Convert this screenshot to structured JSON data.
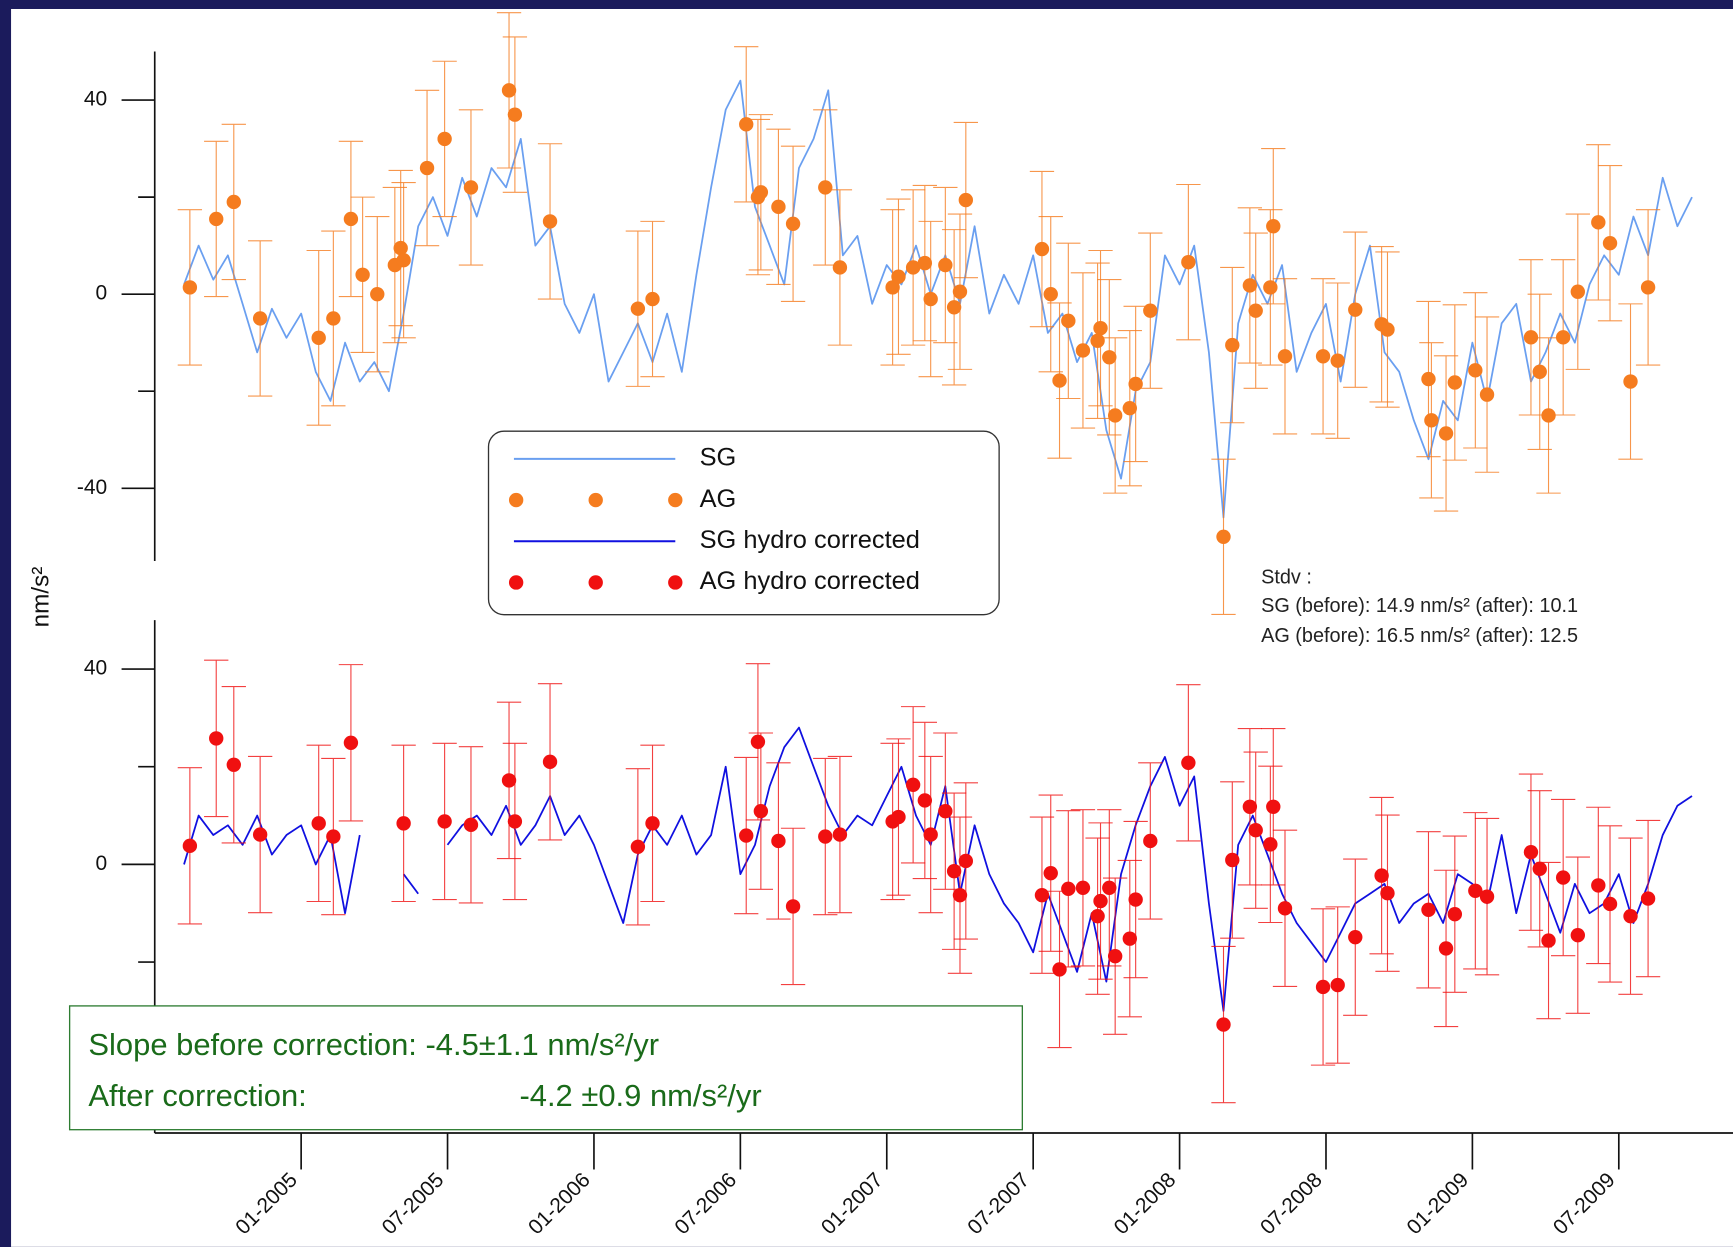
{
  "chart_data": [
    {
      "type": "line",
      "xlim": [
        2004.5,
        2009.89
      ],
      "ylim": [
        -55,
        50
      ],
      "yticks": [
        40,
        0,
        -40
      ],
      "yminor": [
        20,
        -20
      ],
      "series": [
        {
          "name": "SG",
          "color": "#6a9ff0",
          "mode": "line",
          "x": [
            2004.6,
            2004.65,
            2004.7,
            2004.75,
            2004.8,
            2004.85,
            2004.9,
            2004.95,
            2005,
            2005.05,
            2005.1,
            2005.15,
            2005.2,
            2005.25,
            2005.3,
            2005.35,
            2005.4,
            2005.45,
            2005.5,
            2005.55,
            2005.6,
            2005.65,
            2005.7,
            2005.75,
            2005.8,
            2005.85,
            2005.9,
            2005.95,
            2006,
            2006.05,
            2006.1,
            2006.15,
            2006.2,
            2006.25,
            2006.3,
            2006.35,
            2006.4,
            2006.45,
            2006.5,
            2006.55,
            2006.6,
            2006.65,
            2006.7,
            2006.75,
            2006.8,
            2006.85,
            2006.9,
            2006.95,
            2007,
            2007.05,
            2007.1,
            2007.15,
            2007.2,
            2007.25,
            2007.3,
            2007.35,
            2007.4,
            2007.45,
            2007.5,
            2007.55,
            2007.6,
            2007.65,
            2007.7,
            2007.75,
            2007.8,
            2007.85,
            2007.9,
            2007.95,
            2008,
            2008.05,
            2008.1,
            2008.15,
            2008.2,
            2008.25,
            2008.3,
            2008.35,
            2008.4,
            2008.45,
            2008.5,
            2008.55,
            2008.6,
            2008.65,
            2008.7,
            2008.75,
            2008.8,
            2008.85,
            2008.9,
            2008.95,
            2009,
            2009.05,
            2009.1,
            2009.15,
            2009.2,
            2009.25,
            2009.3,
            2009.35,
            2009.4,
            2009.45,
            2009.5,
            2009.55,
            2009.6,
            2009.65,
            2009.7,
            2009.75
          ],
          "values": [
            2,
            10,
            3,
            8,
            -2,
            -12,
            -3,
            -9,
            -4,
            -16,
            -22,
            -10,
            -18,
            -14,
            -20,
            -4,
            14,
            20,
            12,
            24,
            16,
            26,
            22,
            32,
            10,
            14,
            -2,
            -8,
            0,
            -18,
            -12,
            -6,
            -14,
            -4,
            -16,
            4,
            22,
            38,
            44,
            18,
            10,
            2,
            26,
            32,
            42,
            8,
            12,
            -2,
            6,
            2,
            10,
            0,
            8,
            -2,
            14,
            -4,
            4,
            -2,
            8,
            -8,
            -4,
            -14,
            -8,
            -28,
            -38,
            -20,
            -14,
            8,
            2,
            10,
            -12,
            -46,
            -6,
            4,
            -2,
            6,
            -16,
            -8,
            -2,
            -18,
            0,
            10,
            -12,
            -16,
            -26,
            -34,
            -22,
            -26,
            -10,
            -22,
            -6,
            -2,
            -18,
            -12,
            -4,
            -10,
            2,
            8,
            4,
            16,
            8,
            24,
            14,
            20
          ]
        },
        {
          "name": "AG",
          "color": "#f57c1f",
          "mode": "points",
          "x": [
            2004.62,
            2004.71,
            2004.77,
            2004.86,
            2005.06,
            2005.11,
            2005.17,
            2005.21,
            2005.26,
            2005.32,
            2005.34,
            2005.35,
            2005.43,
            2005.49,
            2005.58,
            2005.71,
            2005.73,
            2005.85,
            2006.15,
            2006.2,
            2006.52,
            2006.56,
            2006.57,
            2006.63,
            2006.68,
            2006.79,
            2006.84,
            2007.02,
            2007.04,
            2007.09,
            2007.13,
            2007.15,
            2007.2,
            2007.23,
            2007.25,
            2007.27,
            2007.53,
            2007.56,
            2007.59,
            2007.62,
            2007.67,
            2007.72,
            2007.73,
            2007.76,
            2007.78,
            2007.83,
            2007.85,
            2007.9,
            2008.03,
            2008.15,
            2008.18,
            2008.24,
            2008.26,
            2008.31,
            2008.32,
            2008.36,
            2008.49,
            2008.54,
            2008.6,
            2008.69,
            2008.71,
            2008.85,
            2008.86,
            2008.91,
            2008.94,
            2009.01,
            2009.05,
            2009.2,
            2009.23,
            2009.26,
            2009.31,
            2009.36,
            2009.43,
            2009.47,
            2009.54,
            2009.6
          ],
          "values": [
            1.4,
            15.5,
            19,
            -5,
            -9,
            -5,
            15.5,
            4,
            0,
            6,
            9.5,
            7,
            26,
            32,
            22,
            42,
            37,
            15,
            -3,
            -1,
            35,
            20,
            21,
            18,
            14.5,
            22,
            5.5,
            1.4,
            3.6,
            5.5,
            6.4,
            -1,
            6,
            -2.7,
            0.5,
            19.4,
            9.3,
            0,
            -17.8,
            -5.5,
            -11.6,
            -9.6,
            -7,
            -13,
            -25,
            -23.5,
            -18.5,
            -3.4,
            6.6,
            -50,
            -10.5,
            1.8,
            -3.4,
            1.4,
            14,
            -12.8,
            -12.8,
            -13.7,
            -3.2,
            -6.2,
            -7.3,
            -17.5,
            -26,
            -28.7,
            -18.2,
            -15.7,
            -20.7,
            -8.9,
            -16,
            -25,
            -8.9,
            0.5,
            14.8,
            10.5,
            -18,
            1.4
          ],
          "errors": [
            16,
            16,
            16,
            16,
            18,
            18,
            16,
            16,
            16,
            16,
            16,
            16,
            16,
            16,
            16,
            16,
            16,
            16,
            16,
            16,
            16,
            16,
            16,
            16,
            16,
            16,
            16,
            16,
            16,
            16,
            16,
            16,
            16,
            16,
            16,
            16,
            16,
            16,
            16,
            16,
            16,
            16,
            16,
            16,
            16,
            16,
            16,
            16,
            16,
            16,
            16,
            16,
            16,
            16,
            16,
            16,
            16,
            16,
            16,
            16,
            16,
            16,
            16,
            16,
            16,
            16,
            16,
            16,
            16,
            16,
            16,
            16,
            16,
            16,
            16,
            16
          ]
        }
      ]
    },
    {
      "type": "line",
      "xlim": [
        2004.5,
        2009.89
      ],
      "ylim": [
        -55,
        50
      ],
      "yticks": [
        40,
        0,
        -40
      ],
      "yminor": [
        20,
        -20
      ],
      "xticks": [
        {
          "value": 2005,
          "label": "01-2005"
        },
        {
          "value": 2005.5,
          "label": "07-2005"
        },
        {
          "value": 2006,
          "label": "01-2006"
        },
        {
          "value": 2006.5,
          "label": "07-2006"
        },
        {
          "value": 2007,
          "label": "01-2007"
        },
        {
          "value": 2007.5,
          "label": "07-2007"
        },
        {
          "value": 2008,
          "label": "01-2008"
        },
        {
          "value": 2008.5,
          "label": "07-2008"
        },
        {
          "value": 2009,
          "label": "01-2009"
        },
        {
          "value": 2009.5,
          "label": "07-2009"
        }
      ],
      "series": [
        {
          "name": "SG hydro corrected",
          "color": "#1010e0",
          "mode": "line",
          "x": [
            2004.6,
            2004.65,
            2004.7,
            2004.75,
            2004.8,
            2004.85,
            2004.9,
            2004.95,
            2005,
            2005.05,
            2005.1,
            2005.15,
            2005.2,
            2005.25,
            2005.3,
            2005.35,
            2005.4,
            2005.45,
            2005.5,
            2005.55,
            2005.6,
            2005.65,
            2005.7,
            2005.75,
            2005.8,
            2005.85,
            2005.9,
            2005.95,
            2006,
            2006.05,
            2006.1,
            2006.15,
            2006.2,
            2006.25,
            2006.3,
            2006.35,
            2006.4,
            2006.45,
            2006.5,
            2006.55,
            2006.6,
            2006.65,
            2006.7,
            2006.75,
            2006.8,
            2006.85,
            2006.9,
            2006.95,
            2007,
            2007.05,
            2007.1,
            2007.15,
            2007.2,
            2007.25,
            2007.3,
            2007.35,
            2007.4,
            2007.45,
            2007.5,
            2007.55,
            2007.6,
            2007.65,
            2007.7,
            2007.75,
            2007.8,
            2007.85,
            2007.9,
            2007.95,
            2008,
            2008.05,
            2008.1,
            2008.15,
            2008.2,
            2008.25,
            2008.3,
            2008.35,
            2008.4,
            2008.45,
            2008.5,
            2008.55,
            2008.6,
            2008.65,
            2008.7,
            2008.75,
            2008.8,
            2008.85,
            2008.9,
            2008.95,
            2009,
            2009.05,
            2009.1,
            2009.15,
            2009.2,
            2009.25,
            2009.3,
            2009.35,
            2009.4,
            2009.45,
            2009.5,
            2009.55,
            2009.6,
            2009.65,
            2009.7,
            2009.75
          ],
          "values": [
            0,
            10,
            6,
            8,
            4,
            10,
            2,
            6,
            8,
            0,
            6,
            -10,
            6,
            null,
            null,
            -2,
            -6,
            null,
            4,
            8,
            10,
            6,
            12,
            4,
            8,
            14,
            6,
            10,
            4,
            -4,
            -12,
            2,
            8,
            4,
            10,
            2,
            6,
            20,
            -2,
            4,
            16,
            24,
            28,
            20,
            12,
            6,
            10,
            8,
            14,
            20,
            10,
            4,
            16,
            -6,
            8,
            -2,
            -8,
            -12,
            -18,
            -6,
            -14,
            -22,
            -10,
            -24,
            -2,
            8,
            16,
            22,
            12,
            18,
            -8,
            -30,
            4,
            10,
            2,
            -6,
            -12,
            -16,
            -20,
            -14,
            -8,
            -6,
            -4,
            -12,
            -8,
            -6,
            -12,
            -2,
            -4,
            -8,
            6,
            -10,
            2,
            -6,
            -14,
            -4,
            -10,
            -8,
            -2,
            -12,
            -4,
            6,
            12,
            14
          ]
        },
        {
          "name": "AG hydro corrected",
          "color": "#f01010",
          "mode": "points",
          "x": [
            2004.62,
            2004.71,
            2004.77,
            2004.86,
            2005.06,
            2005.11,
            2005.17,
            2005.35,
            2005.49,
            2005.58,
            2005.71,
            2005.73,
            2005.85,
            2006.15,
            2006.2,
            2006.52,
            2006.56,
            2006.57,
            2006.63,
            2006.68,
            2006.79,
            2006.84,
            2007.02,
            2007.04,
            2007.09,
            2007.13,
            2007.15,
            2007.2,
            2007.23,
            2007.25,
            2007.27,
            2007.53,
            2007.56,
            2007.59,
            2007.62,
            2007.67,
            2007.72,
            2007.73,
            2007.76,
            2007.78,
            2007.83,
            2007.85,
            2007.9,
            2008.03,
            2008.15,
            2008.18,
            2008.24,
            2008.26,
            2008.31,
            2008.32,
            2008.36,
            2008.49,
            2008.54,
            2008.6,
            2008.69,
            2008.71,
            2008.85,
            2008.91,
            2008.94,
            2009.01,
            2009.05,
            2009.2,
            2009.23,
            2009.26,
            2009.31,
            2009.36,
            2009.43,
            2009.47,
            2009.54,
            2009.6
          ],
          "values": [
            3.8,
            25.8,
            20.4,
            6.1,
            8.4,
            5.7,
            24.9,
            8.4,
            8.8,
            8.1,
            17.2,
            8.8,
            21,
            3.6,
            8.4,
            5.9,
            25.1,
            10.9,
            4.8,
            -8.6,
            5.7,
            6.1,
            8.8,
            9.7,
            16.3,
            13.1,
            6.1,
            10.9,
            -1.4,
            -6.3,
            0.7,
            -6.3,
            -1.8,
            -21.5,
            -5,
            -4.8,
            -10.6,
            -7.5,
            -4.8,
            -18.8,
            -15.2,
            -7.2,
            4.8,
            20.8,
            -32.8,
            0.9,
            11.8,
            7,
            4.1,
            11.8,
            -9,
            -25.1,
            -24.7,
            -14.9,
            -2.3,
            -5.9,
            -9.3,
            -17.2,
            -10.2,
            -5.4,
            -6.6,
            2.5,
            -0.9,
            -15.6,
            -2.7,
            -14.5,
            -4.3,
            -8.1,
            -10.6,
            -7
          ],
          "errors": [
            16,
            16,
            16,
            16,
            16,
            16,
            16,
            16,
            16,
            16,
            16,
            16,
            16,
            16,
            16,
            16,
            16,
            16,
            16,
            16,
            16,
            16,
            16,
            16,
            16,
            16,
            16,
            16,
            16,
            16,
            16,
            16,
            16,
            16,
            16,
            16,
            16,
            16,
            16,
            16,
            16,
            16,
            16,
            16,
            16,
            16,
            16,
            16,
            16,
            16,
            16,
            16,
            16,
            16,
            16,
            16,
            16,
            16,
            16,
            16,
            16,
            16,
            16,
            16,
            16,
            16,
            16,
            16,
            16,
            16
          ]
        }
      ]
    }
  ],
  "y_label": "nm/s²",
  "stdv": [
    "Stdv :",
    "SG (before): 14.9 nm/s² (after): 10.1",
    "AG (before): 16.5 nm/s² (after): 12.5"
  ],
  "slope": [
    "Slope before correction: -4.5±1.1 nm/s²/yr",
    "After correction:",
    "-4.2 ±0.9 nm/s²/yr"
  ]
}
